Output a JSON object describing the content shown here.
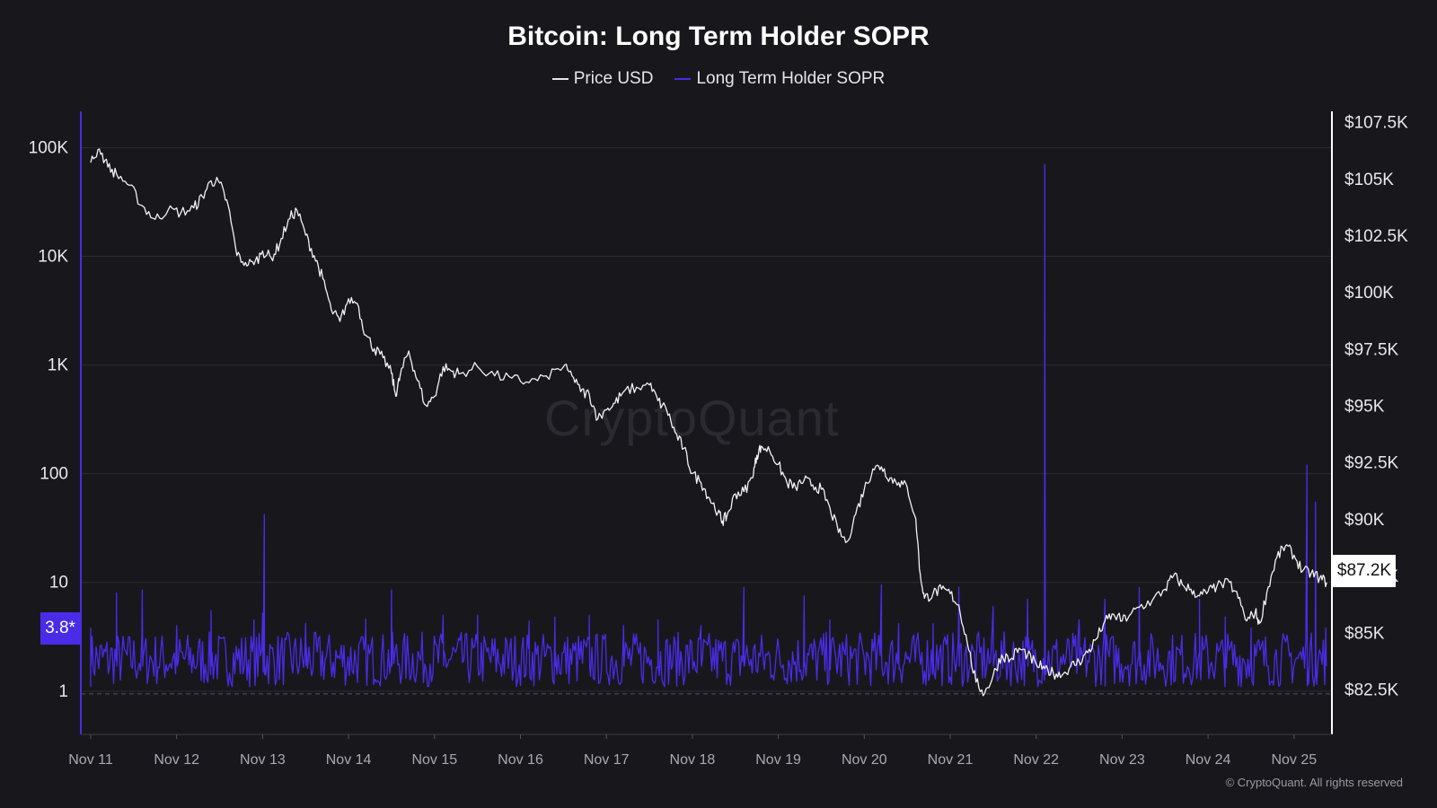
{
  "chart_data": {
    "type": "line",
    "title": "Bitcoin: Long Term Holder SOPR",
    "legend": [
      {
        "name": "Price USD",
        "color": "#e6e6ea"
      },
      {
        "name": "Long Term Holder SOPR",
        "color": "#4a2be8"
      }
    ],
    "legend_position": "top-center",
    "x_tick_labels": [
      "Nov 11",
      "Nov 12",
      "Nov 13",
      "Nov 14",
      "Nov 15",
      "Nov 16",
      "Nov 17",
      "Nov 18",
      "Nov 19",
      "Nov 20",
      "Nov 21",
      "Nov 22",
      "Nov 23",
      "Nov 24",
      "Nov 25"
    ],
    "left_axis": {
      "scale": "log",
      "ticks": [
        "1",
        "10",
        "100",
        "1K",
        "10K",
        "100K"
      ],
      "tick_values": [
        1,
        10,
        100,
        1000,
        10000,
        100000
      ],
      "range": [
        0.4,
        200000
      ]
    },
    "right_axis": {
      "scale": "linear",
      "ticks": [
        "$82.5K",
        "$85K",
        "$87.5K",
        "$90K",
        "$92.5K",
        "$95K",
        "$97.5K",
        "$100K",
        "$102.5K",
        "$105K",
        "$107.5K"
      ],
      "tick_values": [
        82500,
        85000,
        87500,
        90000,
        92500,
        95000,
        97500,
        100000,
        102500,
        105000,
        107500
      ],
      "range": [
        80500,
        107800
      ]
    },
    "grid": true,
    "series": [
      {
        "name": "Price USD",
        "axis": "right",
        "points": [
          [
            11.0,
            105700
          ],
          [
            11.1,
            106300
          ],
          [
            11.2,
            105500
          ],
          [
            11.3,
            105200
          ],
          [
            11.45,
            104700
          ],
          [
            11.6,
            103800
          ],
          [
            11.75,
            103200
          ],
          [
            11.9,
            103600
          ],
          [
            12.05,
            103500
          ],
          [
            12.2,
            103700
          ],
          [
            12.3,
            104200
          ],
          [
            12.4,
            104900
          ],
          [
            12.5,
            104800
          ],
          [
            12.6,
            103800
          ],
          [
            12.7,
            101600
          ],
          [
            12.8,
            101300
          ],
          [
            12.9,
            101200
          ],
          [
            13.0,
            101800
          ],
          [
            13.1,
            101500
          ],
          [
            13.2,
            102100
          ],
          [
            13.3,
            103200
          ],
          [
            13.4,
            103600
          ],
          [
            13.5,
            102500
          ],
          [
            13.6,
            101600
          ],
          [
            13.7,
            100600
          ],
          [
            13.8,
            99200
          ],
          [
            13.9,
            98700
          ],
          [
            14.0,
            99700
          ],
          [
            14.1,
            99500
          ],
          [
            14.2,
            98100
          ],
          [
            14.3,
            97500
          ],
          [
            14.4,
            97100
          ],
          [
            14.5,
            96400
          ],
          [
            14.55,
            95400
          ],
          [
            14.6,
            96300
          ],
          [
            14.7,
            97400
          ],
          [
            14.8,
            96100
          ],
          [
            14.9,
            95000
          ],
          [
            15.0,
            95400
          ],
          [
            15.1,
            96700
          ],
          [
            15.2,
            96500
          ],
          [
            15.3,
            96400
          ],
          [
            15.5,
            96700
          ],
          [
            15.7,
            96300
          ],
          [
            15.9,
            96200
          ],
          [
            16.1,
            96000
          ],
          [
            16.3,
            96300
          ],
          [
            16.5,
            96700
          ],
          [
            16.6,
            96300
          ],
          [
            16.7,
            95600
          ],
          [
            16.8,
            95500
          ],
          [
            16.9,
            94400
          ],
          [
            17.0,
            94800
          ],
          [
            17.1,
            95100
          ],
          [
            17.2,
            95600
          ],
          [
            17.35,
            95800
          ],
          [
            17.5,
            95900
          ],
          [
            17.6,
            95200
          ],
          [
            17.7,
            94800
          ],
          [
            17.8,
            93800
          ],
          [
            17.9,
            93100
          ],
          [
            18.0,
            92000
          ],
          [
            18.1,
            91600
          ],
          [
            18.2,
            90900
          ],
          [
            18.3,
            90300
          ],
          [
            18.35,
            89900
          ],
          [
            18.4,
            90100
          ],
          [
            18.5,
            91100
          ],
          [
            18.6,
            91200
          ],
          [
            18.7,
            91800
          ],
          [
            18.75,
            92800
          ],
          [
            18.8,
            93200
          ],
          [
            18.9,
            93000
          ],
          [
            19.0,
            92400
          ],
          [
            19.1,
            91600
          ],
          [
            19.2,
            91400
          ],
          [
            19.3,
            91700
          ],
          [
            19.4,
            91500
          ],
          [
            19.5,
            91300
          ],
          [
            19.6,
            90500
          ],
          [
            19.7,
            89400
          ],
          [
            19.8,
            89000
          ],
          [
            19.9,
            90200
          ],
          [
            20.0,
            91300
          ],
          [
            20.1,
            92200
          ],
          [
            20.2,
            92300
          ],
          [
            20.3,
            91800
          ],
          [
            20.4,
            91600
          ],
          [
            20.5,
            91400
          ],
          [
            20.6,
            90000
          ],
          [
            20.65,
            87600
          ],
          [
            20.7,
            86500
          ],
          [
            20.8,
            86700
          ],
          [
            20.9,
            86900
          ],
          [
            21.0,
            86700
          ],
          [
            21.1,
            86200
          ],
          [
            21.2,
            84500
          ],
          [
            21.3,
            82800
          ],
          [
            21.4,
            82300
          ],
          [
            21.5,
            83100
          ],
          [
            21.6,
            84000
          ],
          [
            21.7,
            83800
          ],
          [
            21.8,
            84300
          ],
          [
            21.9,
            84000
          ],
          [
            22.0,
            83600
          ],
          [
            22.1,
            83400
          ],
          [
            22.2,
            83200
          ],
          [
            22.3,
            83100
          ],
          [
            22.4,
            83500
          ],
          [
            22.5,
            83700
          ],
          [
            22.6,
            84100
          ],
          [
            22.7,
            84700
          ],
          [
            22.8,
            85500
          ],
          [
            22.9,
            85800
          ],
          [
            23.0,
            85500
          ],
          [
            23.1,
            85800
          ],
          [
            23.2,
            86100
          ],
          [
            23.35,
            86400
          ],
          [
            23.5,
            86900
          ],
          [
            23.6,
            87500
          ],
          [
            23.7,
            87100
          ],
          [
            23.8,
            86900
          ],
          [
            23.9,
            86600
          ],
          [
            24.0,
            86800
          ],
          [
            24.1,
            87000
          ],
          [
            24.25,
            87200
          ],
          [
            24.35,
            86500
          ],
          [
            24.45,
            85500
          ],
          [
            24.55,
            85900
          ],
          [
            24.6,
            85400
          ],
          [
            24.7,
            87000
          ],
          [
            24.8,
            88300
          ],
          [
            24.9,
            88800
          ],
          [
            25.0,
            88400
          ],
          [
            25.1,
            87700
          ],
          [
            25.2,
            87600
          ],
          [
            25.3,
            87400
          ],
          [
            25.38,
            87200
          ]
        ]
      },
      {
        "name": "Long Term Holder SOPR",
        "axis": "left",
        "baseline_value": 1.7,
        "typical_range": [
          1.1,
          3.5
        ],
        "spikes": [
          [
            11.0,
            3.8
          ],
          [
            11.3,
            8.0
          ],
          [
            11.6,
            8.5
          ],
          [
            12.0,
            4.0
          ],
          [
            12.4,
            5.5
          ],
          [
            12.9,
            4.5
          ],
          [
            13.0,
            5.2
          ],
          [
            13.02,
            42
          ],
          [
            13.5,
            4.2
          ],
          [
            14.2,
            4.6
          ],
          [
            14.5,
            8.5
          ],
          [
            15.1,
            5.0
          ],
          [
            15.5,
            5.0
          ],
          [
            16.1,
            4.4
          ],
          [
            16.4,
            4.8
          ],
          [
            16.8,
            5.0
          ],
          [
            17.2,
            4.0
          ],
          [
            17.6,
            4.5
          ],
          [
            18.1,
            4.0
          ],
          [
            18.6,
            9.0
          ],
          [
            19.3,
            7.5
          ],
          [
            19.6,
            4.5
          ],
          [
            20.2,
            9.5
          ],
          [
            20.4,
            4.2
          ],
          [
            20.8,
            4.2
          ],
          [
            21.1,
            9.0
          ],
          [
            21.5,
            6.0
          ],
          [
            21.9,
            7.0
          ],
          [
            22.1,
            70000
          ],
          [
            22.5,
            4.5
          ],
          [
            22.8,
            7.0
          ],
          [
            23.2,
            9.0
          ],
          [
            23.9,
            7.0
          ],
          [
            24.2,
            4.8
          ],
          [
            24.5,
            3.8
          ],
          [
            25.15,
            120
          ],
          [
            25.25,
            55
          ],
          [
            25.37,
            3.8
          ]
        ],
        "last_value": 3.8
      }
    ],
    "current_value_labels": {
      "left": "3.8*",
      "right": "$87.2K"
    }
  },
  "watermark": "CryptoQuant",
  "copyright": "© CryptoQuant. All rights reserved"
}
